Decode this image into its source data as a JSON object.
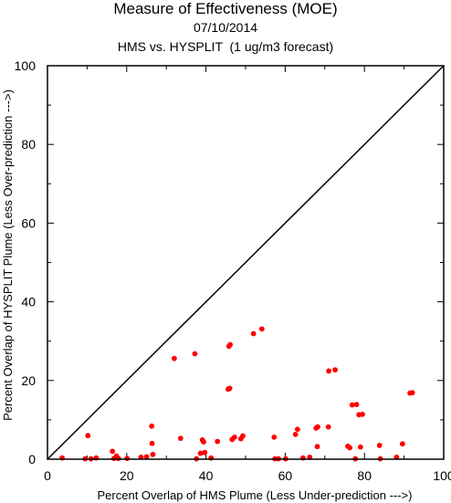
{
  "chart_data": {
    "type": "scatter",
    "title": "Measure of Effectiveness (MOE)",
    "subtitle_lines": [
      "07/10/2014",
      "HMS vs. HYSPLIT  (1 ug/m3 forecast)"
    ],
    "xlabel": "Percent Overlap of HMS Plume (Less Under-prediction --->)",
    "ylabel": "Percent Overlap of HYSPLIT Plume (Less Over-prediction --->)",
    "xlim": [
      0,
      100
    ],
    "ylim": [
      0,
      100
    ],
    "xticks": [
      "0",
      "20",
      "40",
      "60",
      "80",
      "100"
    ],
    "yticks": [
      "0",
      "20",
      "40",
      "60",
      "80",
      "100"
    ],
    "reference_line": "diagonal y = x",
    "grid": false,
    "point_color": "#ff0000",
    "points": [
      {
        "x": 3.7,
        "y": 0.3
      },
      {
        "x": 9.5,
        "y": 0.1
      },
      {
        "x": 10.2,
        "y": 6.0
      },
      {
        "x": 11.0,
        "y": 0.1
      },
      {
        "x": 12.3,
        "y": 0.3
      },
      {
        "x": 16.4,
        "y": 2.0
      },
      {
        "x": 16.8,
        "y": 0.2
      },
      {
        "x": 17.4,
        "y": 0.8
      },
      {
        "x": 17.9,
        "y": 0.2
      },
      {
        "x": 20.1,
        "y": 0.2
      },
      {
        "x": 23.6,
        "y": 0.5
      },
      {
        "x": 25.0,
        "y": 0.6
      },
      {
        "x": 26.3,
        "y": 8.4
      },
      {
        "x": 26.4,
        "y": 4.0
      },
      {
        "x": 26.6,
        "y": 1.2
      },
      {
        "x": 32.0,
        "y": 25.6
      },
      {
        "x": 33.6,
        "y": 5.3
      },
      {
        "x": 37.2,
        "y": 26.8
      },
      {
        "x": 37.6,
        "y": 0.1
      },
      {
        "x": 38.6,
        "y": 1.5
      },
      {
        "x": 39.1,
        "y": 4.9
      },
      {
        "x": 39.4,
        "y": 4.4
      },
      {
        "x": 39.7,
        "y": 1.7
      },
      {
        "x": 41.3,
        "y": 0.3
      },
      {
        "x": 42.9,
        "y": 4.5
      },
      {
        "x": 45.6,
        "y": 17.8
      },
      {
        "x": 45.8,
        "y": 28.7
      },
      {
        "x": 46.0,
        "y": 18.0
      },
      {
        "x": 46.1,
        "y": 29.1
      },
      {
        "x": 46.6,
        "y": 5.0
      },
      {
        "x": 47.2,
        "y": 5.6
      },
      {
        "x": 48.8,
        "y": 5.2
      },
      {
        "x": 49.3,
        "y": 5.9
      },
      {
        "x": 52.0,
        "y": 31.9
      },
      {
        "x": 54.1,
        "y": 33.1
      },
      {
        "x": 57.2,
        "y": 5.6
      },
      {
        "x": 57.4,
        "y": 0.1
      },
      {
        "x": 58.3,
        "y": 0.1
      },
      {
        "x": 60.1,
        "y": 0.1
      },
      {
        "x": 62.6,
        "y": 6.3
      },
      {
        "x": 63.1,
        "y": 7.6
      },
      {
        "x": 64.5,
        "y": 0.3
      },
      {
        "x": 66.2,
        "y": 0.5
      },
      {
        "x": 67.8,
        "y": 7.9
      },
      {
        "x": 68.1,
        "y": 3.2
      },
      {
        "x": 68.2,
        "y": 8.2
      },
      {
        "x": 70.9,
        "y": 8.2
      },
      {
        "x": 71.0,
        "y": 22.4
      },
      {
        "x": 72.6,
        "y": 22.7
      },
      {
        "x": 75.8,
        "y": 3.3
      },
      {
        "x": 76.3,
        "y": 2.9
      },
      {
        "x": 76.9,
        "y": 13.8
      },
      {
        "x": 77.7,
        "y": 0.1
      },
      {
        "x": 78.0,
        "y": 13.9
      },
      {
        "x": 78.6,
        "y": 11.3
      },
      {
        "x": 79.0,
        "y": 3.1
      },
      {
        "x": 79.5,
        "y": 11.4
      },
      {
        "x": 83.8,
        "y": 3.5
      },
      {
        "x": 84.0,
        "y": 0.1
      },
      {
        "x": 88.1,
        "y": 0.5
      },
      {
        "x": 89.6,
        "y": 3.9
      },
      {
        "x": 91.5,
        "y": 16.8
      },
      {
        "x": 92.1,
        "y": 16.9
      }
    ]
  }
}
